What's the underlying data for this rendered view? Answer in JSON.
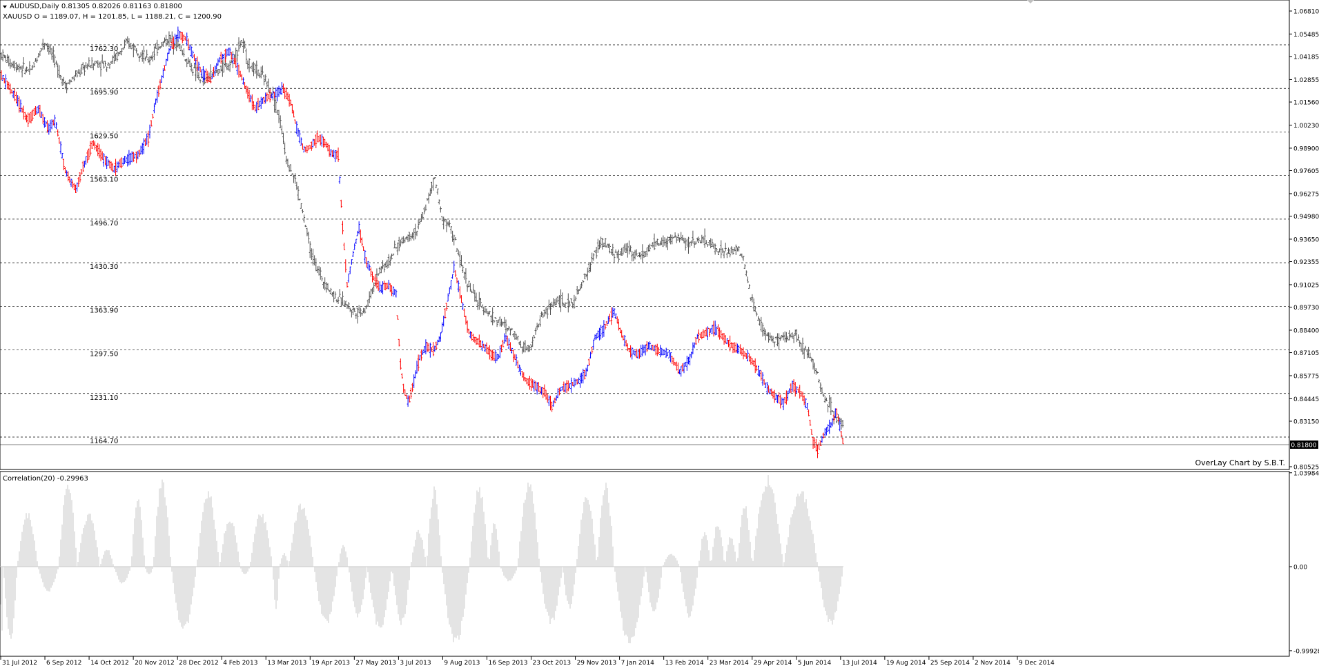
{
  "window": {
    "header_line": "AUDUSD,Daily  0.81305 0.82026 0.81163 0.81800",
    "overlay_line": "XAUUSD O = 1189.07, H = 1201.85, L = 1188.21, C = 1200.90",
    "watermark": "OverLay Chart by S.B.T.",
    "indicator_label": "Correlation(20) -0.29963"
  },
  "colors": {
    "background": "#ffffff",
    "frame": "#000000",
    "grid": "#000000",
    "overlay_bars": "#505050",
    "bull_bars": "#0000ff",
    "bear_bars": "#ff0000",
    "histogram": "#c8c8c8",
    "price_tag_bg": "#000000",
    "price_tag_text": "#ffffff"
  },
  "chart_data": [
    {
      "type": "ohlc-bar",
      "title": "AUDUSD,Daily",
      "symbol": "AUDUSD",
      "overlay_symbol": "XAUUSD",
      "y_axis_right": {
        "labels": [
          "1.06810",
          "1.05485",
          "1.04185",
          "1.02855",
          "1.01560",
          "1.00230",
          "0.98900",
          "0.97605",
          "0.96275",
          "0.94980",
          "0.93650",
          "0.92355",
          "0.91025",
          "0.89730",
          "0.88400",
          "0.87105",
          "0.85775",
          "0.84445",
          "0.83150",
          "0.81800",
          "0.80525"
        ],
        "range": [
          0.80525,
          1.0681
        ]
      },
      "overlay_levels": {
        "labels": [
          "1762.30",
          "1695.90",
          "1629.50",
          "1563.10",
          "1496.70",
          "1430.30",
          "1363.90",
          "1297.50",
          "1231.10",
          "1164.70"
        ],
        "values": [
          1762.3,
          1695.9,
          1629.5,
          1563.1,
          1496.7,
          1430.3,
          1363.9,
          1297.5,
          1231.1,
          1164.7
        ]
      },
      "current_price": "0.81800",
      "x_axis": {
        "labels": [
          "31 Jul 2012",
          "6 Sep 2012",
          "14 Oct 2012",
          "20 Nov 2012",
          "28 Dec 2012",
          "4 Feb 2013",
          "13 Mar 2013",
          "19 Apr 2013",
          "27 May 2013",
          "3 Jul 2013",
          "9 Aug 2013",
          "16 Sep 2013",
          "23 Oct 2013",
          "29 Nov 2013",
          "7 Jan 2014",
          "13 Feb 2014",
          "23 Mar 2014",
          "29 Apr 2014",
          "5 Jun 2014",
          "13 Jul 2014",
          "19 Aug 2014",
          "25 Sep 2014",
          "2 Nov 2014",
          "9 Dec 2014"
        ]
      },
      "audusd_path": [
        [
          0,
          1.032
        ],
        [
          20,
          1.02
        ],
        [
          40,
          1.005
        ],
        [
          55,
          1.012
        ],
        [
          70,
          1.0
        ],
        [
          80,
          1.005
        ],
        [
          95,
          0.975
        ],
        [
          110,
          0.965
        ],
        [
          120,
          0.978
        ],
        [
          135,
          0.992
        ],
        [
          150,
          0.983
        ],
        [
          165,
          0.977
        ],
        [
          180,
          0.982
        ],
        [
          200,
          0.985
        ],
        [
          215,
          0.995
        ],
        [
          225,
          1.015
        ],
        [
          235,
          1.03
        ],
        [
          245,
          1.045
        ],
        [
          258,
          1.055
        ],
        [
          270,
          1.052
        ],
        [
          280,
          1.042
        ],
        [
          292,
          1.033
        ],
        [
          305,
          1.028
        ],
        [
          318,
          1.04
        ],
        [
          332,
          1.045
        ],
        [
          345,
          1.035
        ],
        [
          360,
          1.02
        ],
        [
          370,
          1.012
        ],
        [
          385,
          1.018
        ],
        [
          398,
          1.02
        ],
        [
          410,
          1.023
        ],
        [
          422,
          1.015
        ],
        [
          430,
          1.0
        ],
        [
          440,
          0.988
        ],
        [
          450,
          0.99
        ],
        [
          460,
          0.995
        ],
        [
          470,
          0.993
        ],
        [
          480,
          0.986
        ],
        [
          490,
          0.985
        ],
        [
          497,
          0.94
        ],
        [
          503,
          0.91
        ],
        [
          510,
          0.925
        ],
        [
          520,
          0.943
        ],
        [
          530,
          0.925
        ],
        [
          540,
          0.915
        ],
        [
          550,
          0.908
        ],
        [
          562,
          0.91
        ],
        [
          574,
          0.905
        ],
        [
          580,
          0.865
        ],
        [
          585,
          0.85
        ],
        [
          592,
          0.842
        ],
        [
          600,
          0.855
        ],
        [
          608,
          0.868
        ],
        [
          618,
          0.875
        ],
        [
          628,
          0.872
        ],
        [
          638,
          0.88
        ],
        [
          648,
          0.9
        ],
        [
          658,
          0.92
        ],
        [
          665,
          0.908
        ],
        [
          672,
          0.895
        ],
        [
          680,
          0.882
        ],
        [
          690,
          0.878
        ],
        [
          700,
          0.875
        ],
        [
          712,
          0.87
        ],
        [
          722,
          0.868
        ],
        [
          732,
          0.88
        ],
        [
          742,
          0.872
        ],
        [
          752,
          0.862
        ],
        [
          762,
          0.855
        ],
        [
          775,
          0.852
        ],
        [
          790,
          0.848
        ],
        [
          800,
          0.84
        ],
        [
          812,
          0.85
        ],
        [
          825,
          0.852
        ],
        [
          840,
          0.855
        ],
        [
          850,
          0.86
        ],
        [
          862,
          0.88
        ],
        [
          875,
          0.885
        ],
        [
          890,
          0.895
        ],
        [
          900,
          0.882
        ],
        [
          912,
          0.872
        ],
        [
          925,
          0.87
        ],
        [
          940,
          0.875
        ],
        [
          955,
          0.872
        ],
        [
          970,
          0.87
        ],
        [
          985,
          0.86
        ],
        [
          1000,
          0.868
        ],
        [
          1010,
          0.88
        ],
        [
          1022,
          0.882
        ],
        [
          1035,
          0.885
        ],
        [
          1048,
          0.88
        ],
        [
          1060,
          0.875
        ],
        [
          1075,
          0.872
        ],
        [
          1090,
          0.866
        ],
        [
          1100,
          0.86
        ],
        [
          1112,
          0.85
        ],
        [
          1125,
          0.845
        ],
        [
          1135,
          0.842
        ],
        [
          1148,
          0.852
        ],
        [
          1160,
          0.848
        ],
        [
          1170,
          0.84
        ],
        [
          1178,
          0.82
        ],
        [
          1185,
          0.815
        ],
        [
          1195,
          0.825
        ],
        [
          1205,
          0.83
        ],
        [
          1212,
          0.838
        ],
        [
          1222,
          0.818
        ]
      ],
      "xauusd_path": [
        [
          0,
          1750
        ],
        [
          15,
          1735
        ],
        [
          30,
          1728
        ],
        [
          45,
          1722
        ],
        [
          55,
          1745
        ],
        [
          65,
          1768
        ],
        [
          75,
          1750
        ],
        [
          85,
          1722
        ],
        [
          95,
          1700
        ],
        [
          110,
          1715
        ],
        [
          125,
          1730
        ],
        [
          140,
          1735
        ],
        [
          155,
          1732
        ],
        [
          170,
          1745
        ],
        [
          185,
          1765
        ],
        [
          200,
          1755
        ],
        [
          215,
          1738
        ],
        [
          230,
          1760
        ],
        [
          245,
          1772
        ],
        [
          258,
          1765
        ],
        [
          270,
          1740
        ],
        [
          282,
          1722
        ],
        [
          295,
          1705
        ],
        [
          308,
          1718
        ],
        [
          320,
          1725
        ],
        [
          335,
          1735
        ],
        [
          350,
          1768
        ],
        [
          362,
          1730
        ],
        [
          375,
          1720
        ],
        [
          385,
          1708
        ],
        [
          395,
          1688
        ],
        [
          405,
          1650
        ],
        [
          415,
          1590
        ],
        [
          428,
          1555
        ],
        [
          440,
          1500
        ],
        [
          452,
          1440
        ],
        [
          465,
          1410
        ],
        [
          478,
          1388
        ],
        [
          490,
          1375
        ],
        [
          500,
          1370
        ],
        [
          510,
          1358
        ],
        [
          520,
          1355
        ],
        [
          530,
          1360
        ],
        [
          540,
          1390
        ],
        [
          550,
          1420
        ],
        [
          562,
          1430
        ],
        [
          575,
          1455
        ],
        [
          590,
          1470
        ],
        [
          605,
          1480
        ],
        [
          615,
          1510
        ],
        [
          630,
          1560
        ],
        [
          640,
          1500
        ],
        [
          650,
          1490
        ],
        [
          660,
          1460
        ],
        [
          670,
          1420
        ],
        [
          680,
          1395
        ],
        [
          692,
          1370
        ],
        [
          705,
          1358
        ],
        [
          715,
          1345
        ],
        [
          725,
          1340
        ],
        [
          735,
          1330
        ],
        [
          745,
          1325
        ],
        [
          755,
          1305
        ],
        [
          765,
          1300
        ],
        [
          775,
          1320
        ],
        [
          785,
          1350
        ],
        [
          795,
          1360
        ],
        [
          808,
          1375
        ],
        [
          820,
          1365
        ],
        [
          832,
          1372
        ],
        [
          845,
          1400
        ],
        [
          860,
          1440
        ],
        [
          870,
          1462
        ],
        [
          880,
          1455
        ],
        [
          895,
          1440
        ],
        [
          910,
          1455
        ],
        [
          922,
          1440
        ],
        [
          935,
          1445
        ],
        [
          950,
          1460
        ],
        [
          965,
          1462
        ],
        [
          980,
          1470
        ],
        [
          995,
          1460
        ],
        [
          1010,
          1465
        ],
        [
          1025,
          1462
        ],
        [
          1040,
          1450
        ],
        [
          1055,
          1445
        ],
        [
          1070,
          1452
        ],
        [
          1078,
          1430
        ],
        [
          1088,
          1380
        ],
        [
          1098,
          1345
        ],
        [
          1110,
          1320
        ],
        [
          1125,
          1310
        ],
        [
          1140,
          1315
        ],
        [
          1152,
          1325
        ],
        [
          1162,
          1300
        ],
        [
          1172,
          1295
        ],
        [
          1182,
          1268
        ],
        [
          1192,
          1230
        ],
        [
          1202,
          1215
        ],
        [
          1212,
          1192
        ],
        [
          1222,
          1185
        ]
      ],
      "series_names": [
        "AUDUSD",
        "XAUUSD"
      ]
    },
    {
      "type": "bar",
      "title": "Correlation(20)",
      "last_value": -0.29963,
      "y_axis_right": {
        "labels": [
          "1.03984",
          "0.00",
          "-0.99928"
        ],
        "range": [
          -0.99928,
          1.03984
        ]
      },
      "lobes": [
        [
          0,
          5,
          -0.8
        ],
        [
          5,
          25,
          -0.9
        ],
        [
          25,
          55,
          0.6
        ],
        [
          55,
          85,
          -0.3
        ],
        [
          85,
          112,
          0.95
        ],
        [
          112,
          145,
          0.6
        ],
        [
          145,
          165,
          0.2
        ],
        [
          165,
          190,
          -0.2
        ],
        [
          190,
          210,
          0.8
        ],
        [
          210,
          222,
          -0.1
        ],
        [
          222,
          248,
          0.98
        ],
        [
          248,
          285,
          -0.78
        ],
        [
          285,
          318,
          0.85
        ],
        [
          318,
          348,
          0.55
        ],
        [
          348,
          362,
          -0.1
        ],
        [
          362,
          395,
          0.6
        ],
        [
          395,
          405,
          -0.5
        ],
        [
          405,
          418,
          0.15
        ],
        [
          418,
          455,
          0.7
        ],
        [
          455,
          490,
          -0.7
        ],
        [
          490,
          505,
          0.25
        ],
        [
          505,
          532,
          -0.6
        ],
        [
          532,
          568,
          -0.75
        ],
        [
          568,
          595,
          -0.7
        ],
        [
          595,
          618,
          0.4
        ],
        [
          618,
          640,
          0.88
        ],
        [
          640,
          680,
          -0.95
        ],
        [
          680,
          708,
          0.9
        ],
        [
          708,
          725,
          0.5
        ],
        [
          725,
          750,
          -0.18
        ],
        [
          750,
          782,
          0.95
        ],
        [
          782,
          815,
          -0.7
        ],
        [
          815,
          835,
          -0.5
        ],
        [
          835,
          865,
          0.8
        ],
        [
          865,
          890,
          0.92
        ],
        [
          890,
          935,
          -0.95
        ],
        [
          935,
          960,
          -0.55
        ],
        [
          960,
          985,
          0.14
        ],
        [
          985,
          1012,
          -0.6
        ],
        [
          1012,
          1030,
          0.4
        ],
        [
          1030,
          1050,
          0.5
        ],
        [
          1050,
          1068,
          0.35
        ],
        [
          1068,
          1090,
          0.7
        ],
        [
          1090,
          1135,
          1.0
        ],
        [
          1135,
          1185,
          0.85
        ],
        [
          1185,
          1222,
          -0.7
        ]
      ]
    }
  ]
}
